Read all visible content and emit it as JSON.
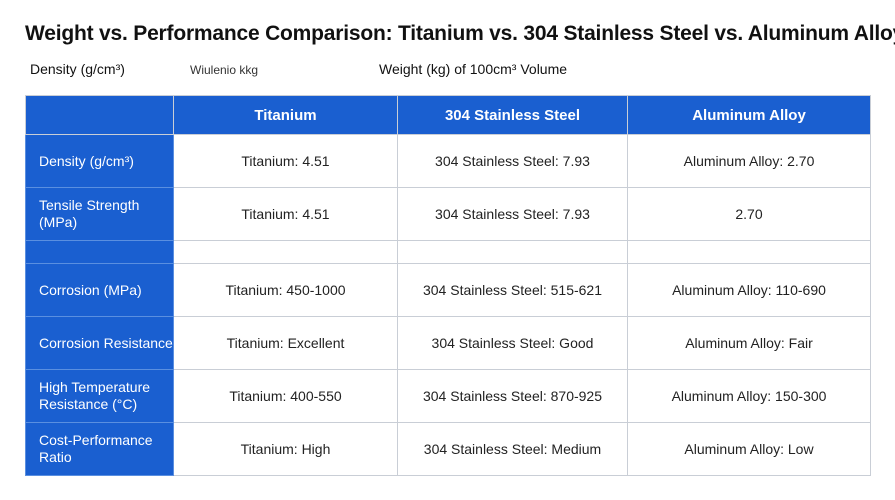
{
  "header": {
    "title": "Weight vs. Performance Comparison: Titanium vs. 304 Stainless Steel vs. Aluminum Alloy",
    "subtitle": [
      "Density (g/cm³)",
      "Wiulenio kkg",
      "Weight (kg) of 100cm³ Volume"
    ]
  },
  "table": {
    "columns": [
      "Titanium",
      "304 Stainless Steel",
      "Aluminum Alloy"
    ],
    "rows": [
      {
        "label": "Density (g/cm³)",
        "cells": [
          "Titanium: 4.51",
          "304 Stainless Steel: 7.93",
          "Aluminum Alloy: 2.70"
        ]
      },
      {
        "label": "Tensile Strength (MPa)",
        "cells": [
          "Titanium: 4.51",
          "304 Stainless Steel: 7.93",
          "2.70"
        ]
      },
      {
        "label": "Corrosion (MPa)",
        "cells": [
          "Titanium: 450-1000",
          "304 Stainless Steel: 515-621",
          "Aluminum Alloy: 110-690"
        ]
      },
      {
        "label": "Corrosion Resistance",
        "cells": [
          "Titanium: Excellent",
          "304 Stainless Steel: Good",
          "Aluminum Alloy: Fair"
        ]
      },
      {
        "label": "High Temperature Resistance (°C)",
        "cells": [
          "Titanium: 400-550",
          "304 Stainless Steel: 870-925",
          "Aluminum Alloy: 150-300"
        ]
      },
      {
        "label": "Cost-Performance Ratio",
        "cells": [
          "Titanium: High",
          "304 Stainless Steel: Medium",
          "Aluminum Alloy: Low"
        ]
      }
    ]
  }
}
